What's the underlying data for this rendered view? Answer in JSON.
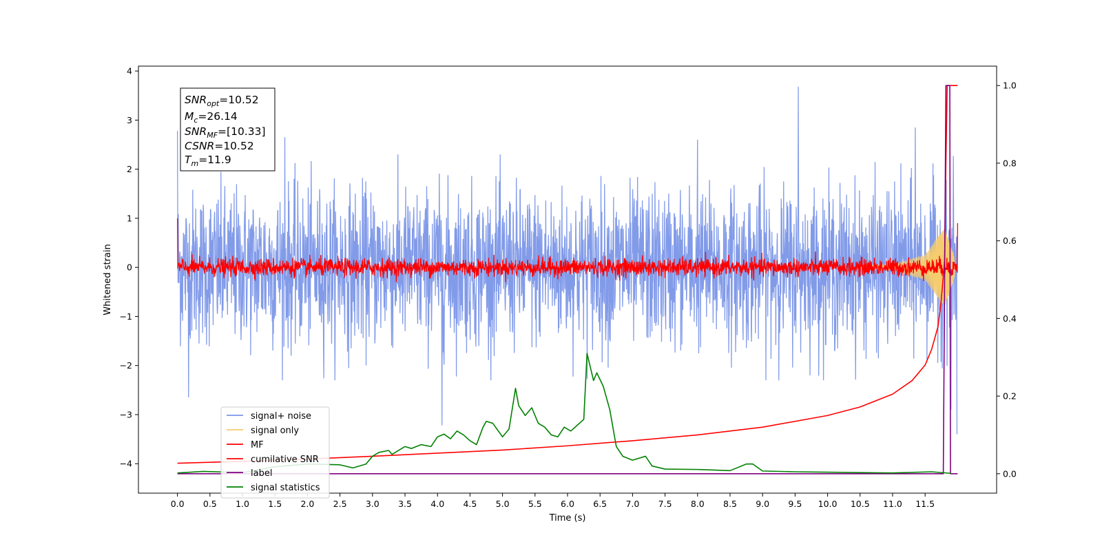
{
  "chart_data": {
    "type": "line",
    "xlabel": "Time (s)",
    "ylabel": "Whitened strain",
    "xlim": [
      -0.6,
      12.6
    ],
    "ylim_left": [
      -4.6,
      4.1
    ],
    "ylim_right": [
      -0.05,
      1.05
    ],
    "x_ticks": [
      0.0,
      0.5,
      1.0,
      1.5,
      2.0,
      2.5,
      3.0,
      3.5,
      4.0,
      4.5,
      5.0,
      5.5,
      6.0,
      6.5,
      7.0,
      7.5,
      8.0,
      8.5,
      9.0,
      9.5,
      10.0,
      10.5,
      11.0,
      11.5
    ],
    "x_tick_labels": [
      "0.0",
      "0.5",
      "1.0",
      "1.5",
      "2.0",
      "2.5",
      "3.0",
      "3.5",
      "4.0",
      "4.5",
      "5.0",
      "5.5",
      "6.0",
      "6.5",
      "7.0",
      "7.5",
      "8.0",
      "8.5",
      "9.0",
      "9.5",
      "10.0",
      "10.5",
      "11.0",
      "11.5"
    ],
    "y_left_ticks": [
      4,
      3,
      2,
      1,
      0,
      -1,
      -2,
      -3,
      -4
    ],
    "y_left_tick_labels": [
      "4",
      "3",
      "2",
      "1",
      "0",
      "−1",
      "−2",
      "−3",
      "−4"
    ],
    "y_right_ticks": [
      1.0,
      0.8,
      0.6,
      0.4,
      0.2,
      0.0
    ],
    "y_right_tick_labels": [
      "1.0",
      "0.8",
      "0.6",
      "0.4",
      "0.2",
      "0.0"
    ],
    "grid": false,
    "legend_position": "lower-left",
    "annotation": {
      "lines": [
        {
          "base": "SNR",
          "sub": "opt",
          "value": "=10.52"
        },
        {
          "base": "M",
          "sub": "c",
          "value": "=26.14"
        },
        {
          "base": "SNR",
          "sub": "MF",
          "value": "=[10.33]"
        },
        {
          "base": "CSNR",
          "sub": "",
          "value": "=10.52"
        },
        {
          "base": "T",
          "sub": "m",
          "value": "=11.9"
        }
      ]
    },
    "series": [
      {
        "name": "signal+ noise",
        "color": "#7b96e8",
        "axis": "left",
        "x_range": [
          0.0,
          11.99
        ],
        "approx_amplitude": 1.4,
        "notable_peaks": [
          {
            "x": 0.0,
            "y": 2.78
          },
          {
            "x": 0.17,
            "y": -2.65
          },
          {
            "x": 1.65,
            "y": 2.65
          },
          {
            "x": 4.07,
            "y": -3.22
          },
          {
            "x": 8.0,
            "y": 2.6
          },
          {
            "x": 9.55,
            "y": 3.68
          },
          {
            "x": 11.35,
            "y": 2.85
          },
          {
            "x": 11.9,
            "y": -2.9
          },
          {
            "x": 11.99,
            "y": -3.4
          }
        ]
      },
      {
        "name": "signal only",
        "color": "#f5cc6e",
        "axis": "left",
        "description_points": [
          [
            0.0,
            0.0
          ],
          [
            11.0,
            0.05
          ],
          [
            11.5,
            0.25
          ],
          [
            11.8,
            0.8
          ],
          [
            11.95,
            0.2
          ]
        ]
      },
      {
        "name": "MF",
        "color": "#ff0000",
        "axis": "left",
        "x_range": [
          0.0,
          12.0
        ],
        "approx_amplitude": 0.15,
        "endpoints": [
          [
            0.0,
            1.0
          ],
          [
            12.0,
            0.9
          ]
        ]
      },
      {
        "name": "cumilative SNR",
        "color": "#ff0000",
        "axis": "right",
        "x": [
          0.0,
          1.0,
          2.0,
          3.0,
          4.0,
          5.0,
          6.0,
          7.0,
          8.0,
          9.0,
          10.0,
          10.5,
          11.0,
          11.3,
          11.5,
          11.6,
          11.7,
          11.75,
          11.8,
          11.82,
          11.84,
          11.9,
          12.0
        ],
        "y": [
          0.027,
          0.032,
          0.038,
          0.045,
          0.053,
          0.061,
          0.072,
          0.085,
          0.1,
          0.12,
          0.15,
          0.172,
          0.205,
          0.24,
          0.28,
          0.32,
          0.38,
          0.45,
          0.55,
          0.8,
          1.0,
          1.0,
          1.0
        ]
      },
      {
        "name": "label",
        "color": "#800080",
        "axis": "right",
        "x": [
          0.0,
          11.78,
          11.8,
          11.82,
          11.88,
          11.89,
          11.9,
          12.0
        ],
        "y": [
          0.0,
          0.0,
          0.5,
          1.0,
          1.0,
          0.0,
          0.0,
          0.0
        ]
      },
      {
        "name": "signal statistics",
        "color": "#008000",
        "axis": "right",
        "x": [
          0.0,
          0.4,
          1.0,
          1.5,
          2.0,
          2.5,
          2.7,
          2.9,
          3.0,
          3.1,
          3.25,
          3.3,
          3.5,
          3.6,
          3.75,
          3.9,
          4.0,
          4.1,
          4.2,
          4.3,
          4.4,
          4.5,
          4.6,
          4.7,
          4.75,
          4.85,
          5.0,
          5.1,
          5.2,
          5.25,
          5.35,
          5.45,
          5.55,
          5.65,
          5.75,
          5.85,
          5.95,
          6.05,
          6.15,
          6.25,
          6.3,
          6.4,
          6.45,
          6.55,
          6.65,
          6.75,
          6.85,
          7.0,
          7.2,
          7.3,
          7.5,
          8.0,
          8.5,
          8.75,
          8.85,
          9.0,
          9.5,
          10.0,
          11.0,
          11.6,
          11.9
        ],
        "y": [
          0.002,
          0.006,
          0.003,
          0.018,
          0.025,
          0.023,
          0.015,
          0.025,
          0.045,
          0.055,
          0.06,
          0.05,
          0.07,
          0.065,
          0.075,
          0.07,
          0.095,
          0.102,
          0.09,
          0.11,
          0.1,
          0.085,
          0.075,
          0.12,
          0.135,
          0.13,
          0.095,
          0.115,
          0.22,
          0.175,
          0.15,
          0.17,
          0.13,
          0.12,
          0.1,
          0.095,
          0.12,
          0.11,
          0.125,
          0.14,
          0.31,
          0.24,
          0.26,
          0.225,
          0.165,
          0.07,
          0.045,
          0.035,
          0.045,
          0.02,
          0.012,
          0.011,
          0.008,
          0.025,
          0.025,
          0.007,
          0.005,
          0.004,
          0.002,
          0.005,
          0.001
        ]
      }
    ]
  }
}
